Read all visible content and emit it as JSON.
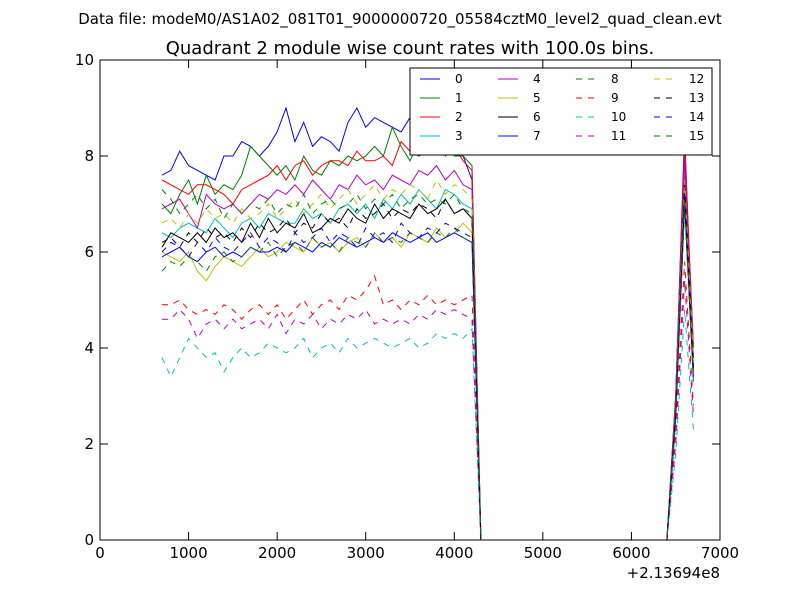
{
  "figure": {
    "suptitle": "Data file: modeM0/AS1A02_081T01_9000000720_05584cztM0_level2_quad_clean.evt",
    "offset_label": "+2.13694e8"
  },
  "chart_data": {
    "type": "line",
    "title": "Quadrant 2 module wise count rates with 100.0s bins.",
    "xlabel": "",
    "ylabel": "",
    "xlim": [
      0,
      7000
    ],
    "ylim": [
      0,
      10
    ],
    "xticks": [
      0,
      1000,
      2000,
      3000,
      4000,
      5000,
      6000,
      7000
    ],
    "yticks": [
      0,
      2,
      4,
      6,
      8,
      10
    ],
    "grid": false,
    "legend_position": "top-right",
    "legend_columns": 4,
    "x": [
      700,
      800,
      900,
      1000,
      1100,
      1200,
      1300,
      1400,
      1500,
      1600,
      1700,
      1800,
      1900,
      2000,
      2100,
      2200,
      2300,
      2400,
      2500,
      2600,
      2700,
      2800,
      2900,
      3000,
      3100,
      3200,
      3300,
      3400,
      3500,
      3600,
      3700,
      3800,
      3900,
      4000,
      4100,
      4200,
      4300,
      6400,
      6500,
      6600,
      6700
    ],
    "series": [
      {
        "name": "0",
        "color": "#0000ff",
        "dash": "solid",
        "values": [
          7.6,
          7.7,
          8.1,
          7.8,
          7.7,
          7.6,
          7.5,
          8.0,
          8.0,
          8.3,
          8.2,
          8.0,
          8.2,
          8.5,
          9.0,
          8.3,
          8.7,
          8.2,
          8.4,
          8.3,
          8.1,
          8.7,
          9.0,
          8.6,
          8.8,
          8.7,
          8.6,
          8.5,
          8.8,
          9.0,
          8.7,
          8.8,
          8.5,
          8.9,
          8.0,
          7.5,
          0,
          0,
          3.0,
          8.5,
          3.5
        ]
      },
      {
        "name": "1",
        "color": "#008000",
        "dash": "solid",
        "values": [
          7.0,
          6.8,
          7.2,
          7.5,
          7.0,
          7.6,
          7.2,
          7.4,
          7.3,
          7.6,
          8.2,
          8.0,
          7.8,
          7.6,
          7.8,
          7.5,
          8.0,
          7.7,
          7.6,
          7.9,
          7.8,
          8.0,
          7.9,
          8.0,
          8.2,
          8.0,
          8.6,
          8.2,
          7.9,
          8.3,
          8.4,
          8.2,
          8.5,
          8.0,
          8.0,
          7.8,
          0,
          0,
          3.0,
          8.1,
          4.0
        ]
      },
      {
        "name": "2",
        "color": "#ff0000",
        "dash": "solid",
        "values": [
          7.5,
          7.4,
          7.3,
          7.2,
          7.4,
          7.4,
          7.3,
          7.2,
          7.0,
          7.3,
          7.4,
          7.5,
          7.6,
          7.8,
          7.5,
          7.8,
          7.9,
          7.6,
          7.8,
          7.9,
          7.9,
          7.8,
          8.1,
          7.9,
          7.9,
          8.0,
          7.8,
          8.3,
          8.1,
          8.0,
          8.1,
          8.2,
          8.0,
          8.2,
          7.9,
          7.7,
          0,
          0,
          3.0,
          8.3,
          4.0
        ]
      },
      {
        "name": "3",
        "color": "#00bfbf",
        "dash": "solid",
        "values": [
          6.4,
          6.3,
          6.5,
          6.6,
          6.5,
          6.4,
          6.7,
          6.5,
          6.3,
          6.6,
          6.7,
          6.5,
          6.8,
          6.7,
          6.6,
          6.6,
          6.9,
          6.7,
          6.8,
          6.6,
          6.9,
          7.0,
          6.8,
          7.0,
          6.7,
          7.1,
          6.9,
          7.2,
          7.0,
          7.3,
          7.1,
          6.9,
          7.3,
          7.2,
          7.0,
          6.9,
          0,
          0,
          2.8,
          7.6,
          3.8
        ]
      },
      {
        "name": "4",
        "color": "#bf00bf",
        "dash": "solid",
        "values": [
          6.9,
          7.0,
          7.1,
          6.8,
          6.5,
          7.2,
          7.0,
          6.9,
          7.0,
          6.8,
          7.0,
          7.2,
          7.1,
          7.3,
          7.2,
          7.4,
          7.2,
          7.5,
          7.3,
          7.1,
          7.4,
          7.3,
          7.6,
          7.4,
          7.5,
          7.3,
          7.6,
          7.5,
          7.4,
          7.7,
          7.6,
          7.8,
          7.5,
          7.7,
          7.4,
          7.3,
          0,
          0,
          2.9,
          7.9,
          3.8
        ]
      },
      {
        "name": "5",
        "color": "#bfbf00",
        "dash": "solid",
        "values": [
          6.0,
          5.9,
          5.8,
          6.0,
          5.6,
          5.4,
          5.7,
          5.9,
          5.8,
          5.7,
          5.9,
          6.1,
          5.9,
          6.0,
          6.2,
          6.1,
          6.0,
          6.3,
          6.1,
          6.2,
          6.0,
          6.2,
          6.3,
          6.1,
          6.4,
          6.2,
          6.3,
          6.1,
          6.4,
          6.3,
          6.2,
          6.5,
          6.3,
          6.4,
          6.6,
          6.4,
          0,
          0,
          2.6,
          7.0,
          3.5
        ]
      },
      {
        "name": "6",
        "color": "#000000",
        "dash": "solid",
        "values": [
          6.1,
          6.4,
          6.3,
          6.2,
          6.4,
          6.2,
          6.5,
          6.3,
          6.4,
          6.2,
          6.6,
          6.3,
          6.7,
          6.4,
          6.6,
          6.5,
          6.8,
          6.4,
          6.5,
          6.7,
          6.6,
          6.9,
          6.7,
          6.6,
          7.0,
          6.7,
          6.9,
          6.8,
          6.7,
          7.0,
          6.8,
          6.9,
          7.1,
          6.8,
          6.9,
          6.7,
          0,
          0,
          2.7,
          7.4,
          3.6
        ]
      },
      {
        "name": "7",
        "color": "#0000ff",
        "dash": "solid",
        "values": [
          5.9,
          6.0,
          6.1,
          5.9,
          5.8,
          6.0,
          6.1,
          5.9,
          6.0,
          5.9,
          6.1,
          6.0,
          6.0,
          6.1,
          6.0,
          6.2,
          6.1,
          6.0,
          6.2,
          6.1,
          6.3,
          6.2,
          6.1,
          6.2,
          6.3,
          6.2,
          6.4,
          6.3,
          6.2,
          6.3,
          6.4,
          6.2,
          6.3,
          6.4,
          6.3,
          6.2,
          0,
          0,
          2.6,
          7.0,
          3.4
        ]
      },
      {
        "name": "8",
        "color": "#008000",
        "dash": "dashed",
        "values": [
          5.6,
          5.8,
          5.7,
          5.9,
          5.8,
          5.6,
          5.9,
          6.0,
          5.8,
          5.9,
          6.1,
          6.0,
          6.2,
          5.9,
          6.1,
          6.2,
          6.0,
          6.3,
          6.1,
          6.2,
          6.0,
          6.3,
          6.2,
          6.1,
          6.4,
          6.2,
          6.3,
          6.2,
          6.4,
          6.3,
          6.2,
          6.4,
          6.3,
          6.5,
          6.3,
          6.2,
          0,
          0,
          2.6,
          6.9,
          3.3
        ]
      },
      {
        "name": "9",
        "color": "#ff0000",
        "dash": "dashed",
        "values": [
          4.9,
          4.9,
          5.0,
          4.8,
          4.7,
          4.8,
          4.7,
          4.9,
          4.8,
          4.6,
          4.8,
          4.9,
          4.7,
          4.9,
          4.6,
          4.8,
          5.0,
          4.7,
          4.9,
          5.0,
          4.8,
          5.1,
          5.0,
          5.2,
          5.5,
          4.9,
          5.0,
          4.8,
          5.0,
          4.9,
          5.1,
          4.9,
          5.0,
          4.9,
          5.0,
          5.1,
          0,
          0,
          2.3,
          5.8,
          2.8
        ]
      },
      {
        "name": "10",
        "color": "#00bfbf",
        "dash": "dashed",
        "values": [
          3.8,
          3.4,
          3.8,
          4.2,
          4.0,
          3.8,
          3.9,
          3.5,
          3.8,
          4.0,
          3.8,
          3.9,
          4.1,
          4.0,
          3.9,
          4.0,
          4.2,
          3.8,
          4.0,
          4.1,
          3.9,
          4.2,
          4.0,
          4.1,
          4.2,
          4.1,
          4.0,
          4.1,
          4.2,
          4.0,
          4.1,
          4.3,
          4.2,
          4.3,
          4.2,
          4.4,
          0,
          0,
          1.8,
          4.8,
          2.3
        ]
      },
      {
        "name": "11",
        "color": "#bf00bf",
        "dash": "dashed",
        "values": [
          4.6,
          4.6,
          4.8,
          4.6,
          4.2,
          4.5,
          4.6,
          4.4,
          4.6,
          4.4,
          4.5,
          4.6,
          4.4,
          4.7,
          4.3,
          4.6,
          4.5,
          4.7,
          4.4,
          4.6,
          4.5,
          4.7,
          4.6,
          4.8,
          4.5,
          4.6,
          4.5,
          4.6,
          4.5,
          4.7,
          4.6,
          4.8,
          4.7,
          4.8,
          4.7,
          4.6,
          0,
          0,
          2.0,
          5.4,
          2.6
        ]
      },
      {
        "name": "12",
        "color": "#bfbf00",
        "dash": "dashed",
        "values": [
          6.6,
          6.7,
          6.5,
          6.8,
          6.6,
          6.9,
          6.7,
          6.8,
          6.6,
          6.9,
          6.7,
          6.8,
          7.0,
          6.7,
          6.9,
          7.1,
          6.8,
          7.0,
          7.2,
          6.9,
          7.1,
          7.3,
          7.0,
          7.2,
          7.4,
          7.1,
          7.3,
          7.2,
          7.4,
          7.3,
          7.1,
          7.5,
          7.2,
          7.4,
          7.3,
          7.1,
          0,
          0,
          2.8,
          7.5,
          3.7
        ]
      },
      {
        "name": "13",
        "color": "#000000",
        "dash": "dashed",
        "values": [
          6.2,
          6.3,
          6.1,
          6.4,
          6.2,
          6.5,
          6.3,
          6.4,
          6.2,
          6.5,
          6.3,
          6.6,
          6.4,
          6.5,
          6.7,
          6.4,
          6.6,
          6.5,
          6.8,
          6.6,
          6.7,
          6.5,
          6.9,
          6.7,
          6.8,
          7.0,
          6.7,
          6.9,
          6.8,
          7.0,
          6.9,
          6.7,
          7.1,
          6.8,
          6.9,
          6.7,
          0,
          0,
          2.7,
          7.2,
          3.5
        ]
      },
      {
        "name": "14",
        "color": "#0000ff",
        "dash": "dashed",
        "values": [
          6.0,
          6.2,
          6.1,
          5.9,
          6.2,
          6.0,
          6.3,
          6.1,
          6.0,
          6.2,
          6.4,
          6.1,
          6.3,
          6.2,
          6.0,
          6.4,
          6.2,
          6.3,
          6.5,
          6.2,
          6.4,
          6.3,
          6.1,
          6.5,
          6.3,
          6.4,
          6.2,
          6.6,
          6.4,
          6.3,
          6.5,
          6.4,
          6.6,
          6.5,
          6.4,
          6.3,
          0,
          0,
          2.5,
          7.2,
          3.3
        ]
      },
      {
        "name": "15",
        "color": "#008000",
        "dash": "dashed",
        "values": [
          7.3,
          7.1,
          6.8,
          7.0,
          7.2,
          6.9,
          7.1,
          6.7,
          7.0,
          6.8,
          7.0,
          6.9,
          7.1,
          6.8,
          7.0,
          6.9,
          7.2,
          6.8,
          7.0,
          7.1,
          6.9,
          7.0,
          7.2,
          6.9,
          7.1,
          7.0,
          7.2,
          6.9,
          7.1,
          7.2,
          7.0,
          7.1,
          7.0,
          7.2,
          6.9,
          6.8,
          0,
          0,
          2.7,
          7.1,
          3.5
        ]
      }
    ]
  }
}
